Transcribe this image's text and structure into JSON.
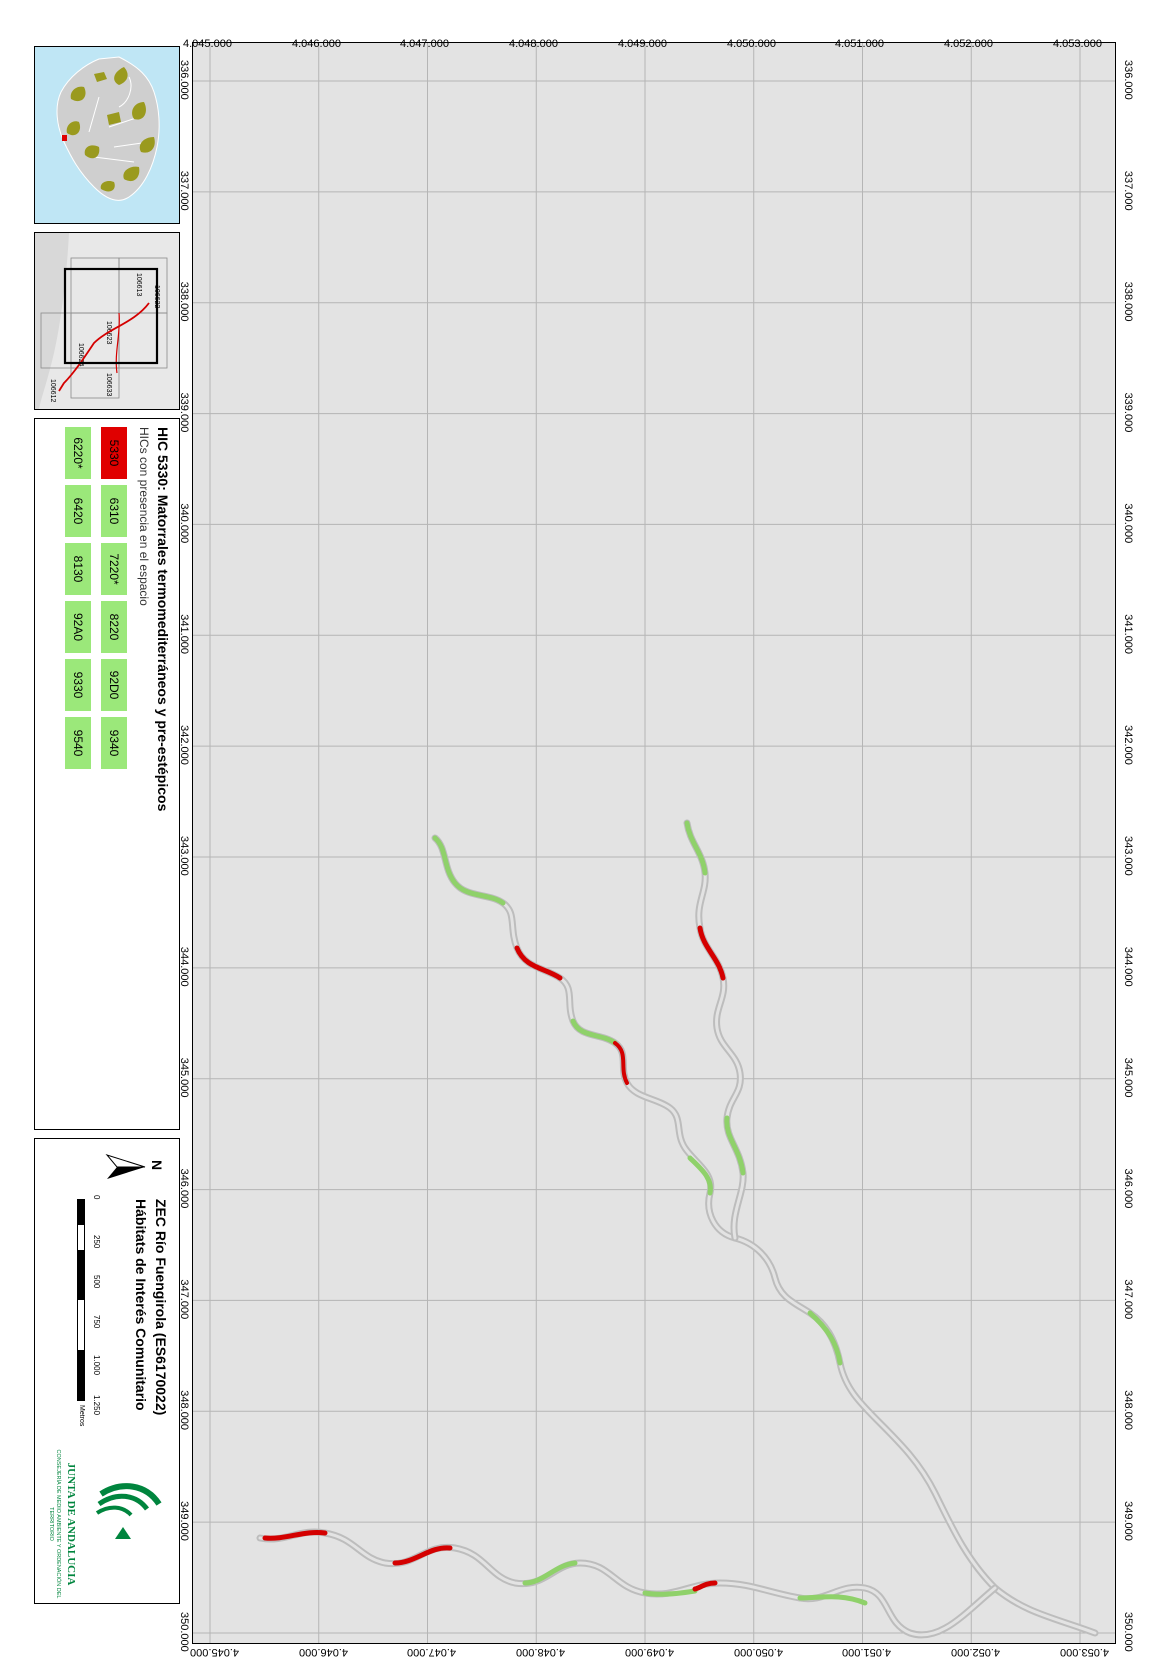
{
  "map": {
    "x_ticks": [
      "336.000",
      "337.000",
      "338.000",
      "339.000",
      "340.000",
      "341.000",
      "342.000",
      "343.000",
      "344.000",
      "345.000",
      "346.000",
      "347.000",
      "348.000",
      "349.000",
      "350.000"
    ],
    "y_ticks": [
      "4.045.000",
      "4.046.000",
      "4.047.000",
      "4.048.000",
      "4.049.000",
      "4.050.000",
      "4.051.000",
      "4.052.000",
      "4.053.000"
    ],
    "colors": {
      "frame_bg": "#e3e3e3",
      "grid": "#b5b5b5",
      "river": "#bdbdbd",
      "green": "#8fd16a",
      "red": "#d40000"
    }
  },
  "legend": {
    "title": "HIC 5330: Matorrales termomediterráneos y pre-estépicos",
    "subtitle": "HICs con presencia en el espacio",
    "codes_row1": [
      {
        "code": "5330",
        "color": "#e00000"
      },
      {
        "code": "6310",
        "color": "#9be87a"
      },
      {
        "code": "7220*",
        "color": "#9be87a"
      },
      {
        "code": "8220",
        "color": "#9be87a"
      },
      {
        "code": "92D0",
        "color": "#9be87a"
      },
      {
        "code": "9340",
        "color": "#9be87a"
      }
    ],
    "codes_row2": [
      {
        "code": "6220*",
        "color": "#9be87a"
      },
      {
        "code": "6420",
        "color": "#9be87a"
      },
      {
        "code": "8130",
        "color": "#9be87a"
      },
      {
        "code": "92A0",
        "color": "#9be87a"
      },
      {
        "code": "9330",
        "color": "#9be87a"
      },
      {
        "code": "9540",
        "color": "#9be87a"
      }
    ]
  },
  "info": {
    "title": "ZEC Río Fuengirola (ES6170022)",
    "subtitle": "Hábitats de Interés Comunitario",
    "north": "N",
    "scale": [
      "0",
      "250",
      "500",
      "750",
      "1.000",
      "1.250"
    ],
    "scale_unit": "Metros"
  },
  "logo": {
    "name": "JUNTA DE ANDALUCIA",
    "dept": "CONSEJERÍA DE MEDIO AMBIENTE Y ORDENACIÓN DEL TERRITORIO",
    "green": "#00853e"
  },
  "index_map": {
    "sheets": [
      "106612",
      "106613",
      "106622",
      "106623",
      "106624",
      "106633"
    ]
  }
}
